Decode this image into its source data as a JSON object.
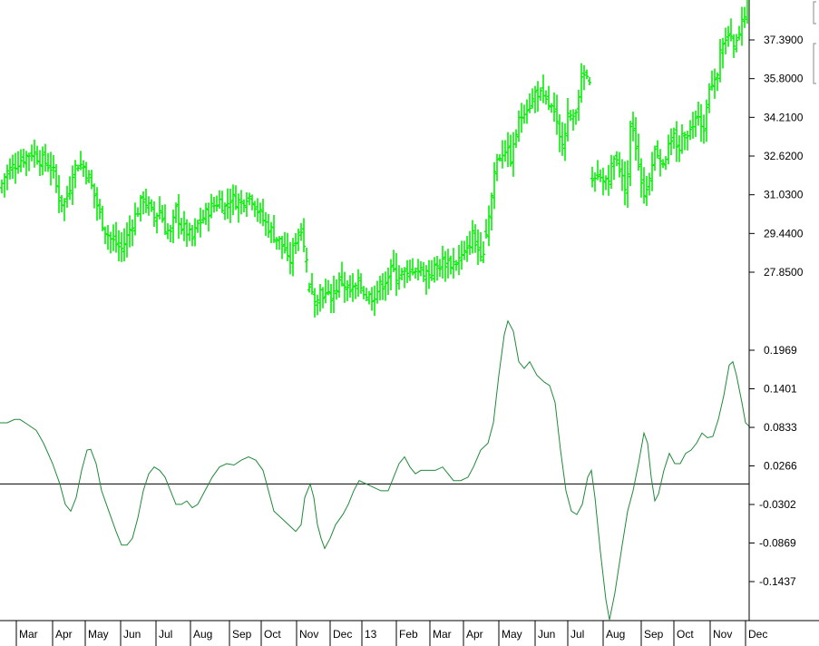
{
  "chart_data": [
    {
      "type": "ohlc-bar",
      "title": "",
      "color": "#00ee00",
      "y_ticks": [
        "37.3900",
        "35.8000",
        "34.2100",
        "32.6200",
        "31.0300",
        "29.4400",
        "27.8500"
      ],
      "ylim": [
        26.5,
        39.5
      ],
      "x_months": [
        "Mar",
        "Apr",
        "May",
        "Jun",
        "Jul",
        "Aug",
        "Sep",
        "Oct",
        "Nov",
        "Dec",
        "13",
        "Feb",
        "Mar",
        "Apr",
        "May",
        "Jun",
        "Jul",
        "Aug",
        "Sep",
        "Oct",
        "Nov",
        "Dec"
      ],
      "price_path": [
        [
          0,
          31.3
        ],
        [
          6,
          31.9
        ],
        [
          12,
          32.1
        ],
        [
          20,
          32.4
        ],
        [
          28,
          32.6
        ],
        [
          36,
          32.8
        ],
        [
          44,
          32.5
        ],
        [
          52,
          32.3
        ],
        [
          58,
          32.1
        ],
        [
          64,
          31.0
        ],
        [
          70,
          30.6
        ],
        [
          76,
          31.2
        ],
        [
          80,
          32.0
        ],
        [
          86,
          32.3
        ],
        [
          92,
          32.2
        ],
        [
          98,
          31.7
        ],
        [
          104,
          31.0
        ],
        [
          110,
          30.2
        ],
        [
          116,
          29.6
        ],
        [
          122,
          29.2
        ],
        [
          128,
          29.0
        ],
        [
          134,
          28.8
        ],
        [
          140,
          29.3
        ],
        [
          146,
          29.9
        ],
        [
          152,
          30.4
        ],
        [
          158,
          30.9
        ],
        [
          164,
          30.5
        ],
        [
          170,
          30.1
        ],
        [
          176,
          30.4
        ],
        [
          182,
          29.7
        ],
        [
          188,
          29.4
        ],
        [
          194,
          30.4
        ],
        [
          200,
          29.7
        ],
        [
          206,
          29.5
        ],
        [
          212,
          29.2
        ],
        [
          218,
          29.8
        ],
        [
          224,
          30.1
        ],
        [
          230,
          30.4
        ],
        [
          236,
          30.6
        ],
        [
          242,
          30.8
        ],
        [
          248,
          30.5
        ],
        [
          254,
          30.9
        ],
        [
          260,
          30.8
        ],
        [
          266,
          30.7
        ],
        [
          272,
          31.0
        ],
        [
          278,
          30.9
        ],
        [
          284,
          30.4
        ],
        [
          290,
          30.0
        ],
        [
          296,
          29.7
        ],
        [
          302,
          29.4
        ],
        [
          308,
          29.1
        ],
        [
          314,
          28.8
        ],
        [
          318,
          28.1
        ],
        [
          322,
          28.6
        ],
        [
          326,
          29.2
        ],
        [
          330,
          29.7
        ],
        [
          334,
          29.4
        ],
        [
          338,
          28.5
        ],
        [
          342,
          26.9
        ],
        [
          348,
          26.9
        ],
        [
          354,
          27.1
        ],
        [
          360,
          26.8
        ],
        [
          366,
          26.9
        ],
        [
          372,
          27.3
        ],
        [
          378,
          27.5
        ],
        [
          384,
          27.0
        ],
        [
          390,
          27.1
        ],
        [
          396,
          27.4
        ],
        [
          402,
          27.0
        ],
        [
          408,
          26.8
        ],
        [
          414,
          27.0
        ],
        [
          420,
          27.3
        ],
        [
          426,
          27.6
        ],
        [
          432,
          27.9
        ],
        [
          438,
          27.7
        ],
        [
          444,
          27.8
        ],
        [
          450,
          27.6
        ],
        [
          456,
          28.1
        ],
        [
          462,
          27.9
        ],
        [
          468,
          27.9
        ],
        [
          474,
          27.8
        ],
        [
          480,
          28.0
        ],
        [
          486,
          28.2
        ],
        [
          492,
          28.3
        ],
        [
          498,
          28.2
        ],
        [
          504,
          28.3
        ],
        [
          510,
          28.5
        ],
        [
          516,
          28.7
        ],
        [
          520,
          29.5
        ],
        [
          524,
          29.0
        ],
        [
          528,
          28.7
        ],
        [
          534,
          28.8
        ],
        [
          538,
          30.0
        ],
        [
          542,
          31.0
        ],
        [
          546,
          32.3
        ],
        [
          550,
          32.6
        ],
        [
          554,
          32.8
        ],
        [
          558,
          33.0
        ],
        [
          562,
          32.4
        ],
        [
          566,
          32.9
        ],
        [
          570,
          33.8
        ],
        [
          574,
          34.2
        ],
        [
          578,
          34.6
        ],
        [
          582,
          34.7
        ],
        [
          586,
          34.8
        ],
        [
          590,
          35.2
        ],
        [
          594,
          35.3
        ],
        [
          598,
          34.9
        ],
        [
          602,
          34.8
        ],
        [
          606,
          34.7
        ],
        [
          610,
          34.4
        ],
        [
          614,
          33.8
        ],
        [
          618,
          33.1
        ],
        [
          622,
          33.6
        ],
        [
          626,
          34.3
        ],
        [
          630,
          34.0
        ],
        [
          634,
          34.5
        ],
        [
          638,
          35.2
        ],
        [
          642,
          35.8
        ],
        [
          646,
          36.0
        ],
        [
          650,
          35.4
        ],
        [
          652,
          31.9
        ],
        [
          656,
          31.5
        ],
        [
          660,
          31.7
        ],
        [
          664,
          31.5
        ],
        [
          668,
          31.7
        ],
        [
          672,
          31.9
        ],
        [
          676,
          32.4
        ],
        [
          680,
          32.6
        ],
        [
          684,
          32.0
        ],
        [
          688,
          31.3
        ],
        [
          692,
          31.9
        ],
        [
          696,
          34.3
        ],
        [
          700,
          33.3
        ],
        [
          704,
          32.4
        ],
        [
          708,
          31.3
        ],
        [
          712,
          31.0
        ],
        [
          716,
          31.9
        ],
        [
          720,
          32.7
        ],
        [
          724,
          32.9
        ],
        [
          728,
          32.5
        ],
        [
          732,
          32.4
        ],
        [
          736,
          32.9
        ],
        [
          740,
          33.0
        ],
        [
          744,
          33.5
        ],
        [
          748,
          32.8
        ],
        [
          752,
          33.4
        ],
        [
          756,
          33.8
        ],
        [
          760,
          33.5
        ],
        [
          764,
          34.0
        ],
        [
          768,
          34.6
        ],
        [
          772,
          34.2
        ],
        [
          776,
          33.6
        ],
        [
          780,
          35.3
        ],
        [
          784,
          35.4
        ],
        [
          788,
          35.6
        ],
        [
          792,
          36.3
        ],
        [
          796,
          37.4
        ],
        [
          800,
          37.3
        ],
        [
          804,
          37.6
        ],
        [
          808,
          37.0
        ],
        [
          812,
          37.2
        ],
        [
          816,
          37.7
        ],
        [
          820,
          38.4
        ],
        [
          824,
          38.9
        ],
        [
          826,
          39.2
        ]
      ]
    },
    {
      "type": "line",
      "title": "",
      "color": "#1f8a3a",
      "y_ticks": [
        "0.1969",
        "0.1401",
        "0.0833",
        "0.0266",
        "-0.0302",
        "-0.0869",
        "-0.1437"
      ],
      "ylim": [
        -0.2,
        0.26
      ],
      "zero_line": 0.0,
      "points": [
        [
          0,
          0.09
        ],
        [
          8,
          0.09
        ],
        [
          16,
          0.095
        ],
        [
          22,
          0.095
        ],
        [
          30,
          0.088
        ],
        [
          40,
          0.079
        ],
        [
          48,
          0.06
        ],
        [
          58,
          0.03
        ],
        [
          66,
          0.0
        ],
        [
          72,
          -0.03
        ],
        [
          78,
          -0.04
        ],
        [
          84,
          -0.02
        ],
        [
          90,
          0.02
        ],
        [
          96,
          0.05
        ],
        [
          100,
          0.051
        ],
        [
          106,
          0.03
        ],
        [
          112,
          -0.01
        ],
        [
          120,
          -0.04
        ],
        [
          128,
          -0.07
        ],
        [
          134,
          -0.09
        ],
        [
          140,
          -0.09
        ],
        [
          146,
          -0.08
        ],
        [
          152,
          -0.05
        ],
        [
          158,
          -0.01
        ],
        [
          164,
          0.015
        ],
        [
          170,
          0.025
        ],
        [
          176,
          0.02
        ],
        [
          182,
          0.01
        ],
        [
          188,
          -0.01
        ],
        [
          194,
          -0.03
        ],
        [
          200,
          -0.03
        ],
        [
          206,
          -0.025
        ],
        [
          212,
          -0.035
        ],
        [
          218,
          -0.03
        ],
        [
          226,
          -0.01
        ],
        [
          234,
          0.01
        ],
        [
          242,
          0.025
        ],
        [
          250,
          0.03
        ],
        [
          258,
          0.028
        ],
        [
          266,
          0.035
        ],
        [
          274,
          0.04
        ],
        [
          282,
          0.035
        ],
        [
          290,
          0.02
        ],
        [
          296,
          -0.01
        ],
        [
          302,
          -0.04
        ],
        [
          310,
          -0.05
        ],
        [
          318,
          -0.06
        ],
        [
          326,
          -0.07
        ],
        [
          332,
          -0.06
        ],
        [
          336,
          -0.02
        ],
        [
          342,
          0.0
        ],
        [
          346,
          -0.02
        ],
        [
          350,
          -0.06
        ],
        [
          354,
          -0.08
        ],
        [
          358,
          -0.095
        ],
        [
          364,
          -0.08
        ],
        [
          370,
          -0.06
        ],
        [
          378,
          -0.045
        ],
        [
          384,
          -0.03
        ],
        [
          390,
          -0.01
        ],
        [
          396,
          0.005
        ],
        [
          404,
          0.0
        ],
        [
          412,
          -0.005
        ],
        [
          420,
          -0.01
        ],
        [
          428,
          -0.01
        ],
        [
          434,
          0.01
        ],
        [
          440,
          0.03
        ],
        [
          446,
          0.04
        ],
        [
          452,
          0.025
        ],
        [
          458,
          0.015
        ],
        [
          464,
          0.02
        ],
        [
          472,
          0.02
        ],
        [
          480,
          0.02
        ],
        [
          488,
          0.025
        ],
        [
          494,
          0.015
        ],
        [
          500,
          0.005
        ],
        [
          508,
          0.005
        ],
        [
          516,
          0.01
        ],
        [
          522,
          0.025
        ],
        [
          530,
          0.05
        ],
        [
          538,
          0.06
        ],
        [
          544,
          0.09
        ],
        [
          550,
          0.16
        ],
        [
          556,
          0.22
        ],
        [
          560,
          0.24
        ],
        [
          566,
          0.225
        ],
        [
          572,
          0.18
        ],
        [
          578,
          0.17
        ],
        [
          584,
          0.18
        ],
        [
          592,
          0.16
        ],
        [
          600,
          0.15
        ],
        [
          606,
          0.145
        ],
        [
          612,
          0.12
        ],
        [
          618,
          0.05
        ],
        [
          624,
          -0.01
        ],
        [
          630,
          -0.04
        ],
        [
          636,
          -0.045
        ],
        [
          642,
          -0.03
        ],
        [
          648,
          0.01
        ],
        [
          652,
          0.02
        ],
        [
          656,
          -0.02
        ],
        [
          662,
          -0.1
        ],
        [
          668,
          -0.17
        ],
        [
          672,
          -0.2
        ],
        [
          678,
          -0.16
        ],
        [
          686,
          -0.09
        ],
        [
          692,
          -0.04
        ],
        [
          698,
          -0.01
        ],
        [
          704,
          0.03
        ],
        [
          710,
          0.075
        ],
        [
          714,
          0.06
        ],
        [
          718,
          0.01
        ],
        [
          722,
          -0.025
        ],
        [
          726,
          -0.015
        ],
        [
          732,
          0.02
        ],
        [
          738,
          0.045
        ],
        [
          744,
          0.03
        ],
        [
          750,
          0.03
        ],
        [
          756,
          0.045
        ],
        [
          762,
          0.05
        ],
        [
          768,
          0.06
        ],
        [
          774,
          0.075
        ],
        [
          780,
          0.068
        ],
        [
          786,
          0.07
        ],
        [
          792,
          0.095
        ],
        [
          798,
          0.13
        ],
        [
          804,
          0.175
        ],
        [
          808,
          0.18
        ],
        [
          812,
          0.16
        ],
        [
          818,
          0.12
        ],
        [
          822,
          0.09
        ],
        [
          826,
          0.085
        ]
      ]
    }
  ]
}
